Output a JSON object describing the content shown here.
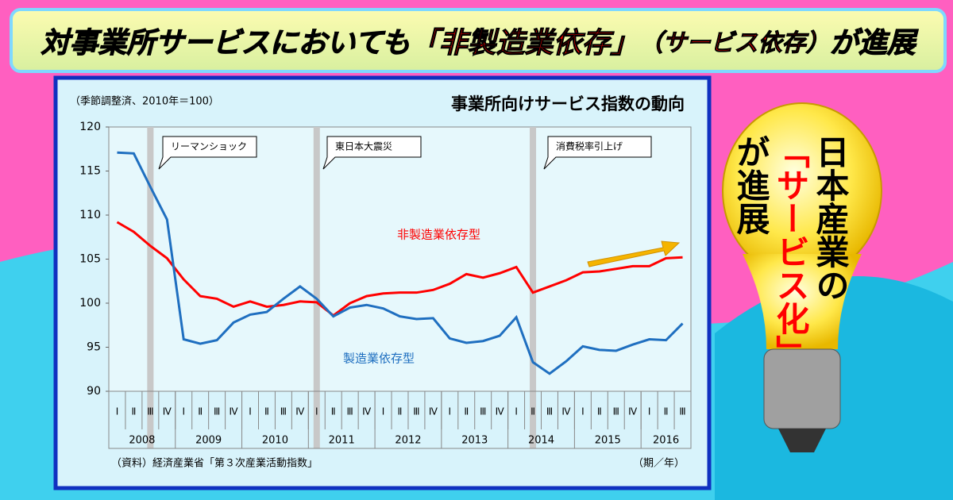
{
  "header": {
    "parts": [
      "対事業所サービスにおいても",
      "「非製造業依存」",
      "（サービス依存）",
      "が進展"
    ]
  },
  "bulb": {
    "lines": [
      "日本産業の",
      "「サービス化」",
      "が進展"
    ]
  },
  "chart_data": {
    "type": "line",
    "title": "事業所向けサービス指数の動向",
    "subtitle": "（季節調整済、2010年＝100）",
    "source": "（資料）経済産業省「第３次産業活動指数」",
    "x_unit": "（期／年）",
    "annotations": [
      "リーマンショック",
      "東日本大震災",
      "消費税率引上げ"
    ],
    "categories": [
      "Ⅰ",
      "Ⅱ",
      "Ⅲ",
      "Ⅳ",
      "Ⅰ",
      "Ⅱ",
      "Ⅲ",
      "Ⅳ",
      "Ⅰ",
      "Ⅱ",
      "Ⅲ",
      "Ⅳ",
      "Ⅰ",
      "Ⅱ",
      "Ⅲ",
      "Ⅳ",
      "Ⅰ",
      "Ⅱ",
      "Ⅲ",
      "Ⅳ",
      "Ⅰ",
      "Ⅱ",
      "Ⅲ",
      "Ⅳ",
      "Ⅰ",
      "Ⅱ",
      "Ⅲ",
      "Ⅳ",
      "Ⅰ",
      "Ⅱ",
      "Ⅲ",
      "Ⅳ",
      "Ⅰ",
      "Ⅱ",
      "Ⅲ"
    ],
    "years": [
      "2008",
      "2009",
      "2010",
      "2011",
      "2012",
      "2013",
      "2014",
      "2015",
      "2016"
    ],
    "series": [
      {
        "name": "非製造業依存型",
        "color": "#ff0000",
        "values": [
          109.2,
          108.1,
          106.5,
          105.1,
          102.7,
          100.8,
          100.5,
          99.6,
          100.2,
          99.6,
          99.8,
          100.2,
          100.1,
          98.6,
          100.0,
          100.8,
          101.1,
          101.2,
          101.2,
          101.5,
          102.2,
          103.3,
          102.9,
          103.4,
          104.1,
          101.2,
          101.9,
          102.6,
          103.5,
          103.6,
          103.9,
          104.2,
          104.2,
          105.1,
          105.2
        ]
      },
      {
        "name": "製造業依存型",
        "color": "#1f6fc0",
        "values": [
          117.1,
          117.0,
          113.2,
          109.5,
          95.9,
          95.4,
          95.8,
          97.8,
          98.7,
          99.0,
          100.5,
          101.9,
          100.5,
          98.5,
          99.5,
          99.8,
          99.4,
          98.5,
          98.2,
          98.3,
          96.0,
          95.5,
          95.7,
          96.3,
          98.4,
          93.3,
          92.0,
          93.4,
          95.1,
          94.7,
          94.6,
          95.3,
          95.9,
          95.8,
          97.7
        ]
      }
    ],
    "ylim": [
      90,
      120
    ],
    "yticks": [
      90,
      95,
      100,
      105,
      110,
      115,
      120
    ],
    "grid": false
  }
}
